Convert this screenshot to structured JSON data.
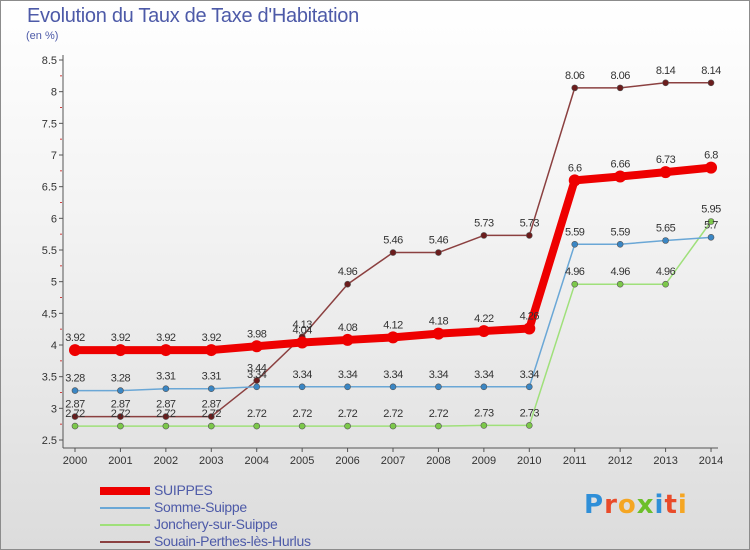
{
  "title": "Evolution du Taux de Taxe d'Habitation",
  "subtitle": "(en %)",
  "logo": {
    "letters": [
      {
        "ch": "P",
        "color": "#2f8fd8"
      },
      {
        "ch": "r",
        "color": "#e94b2a"
      },
      {
        "ch": "o",
        "color": "#f5a623"
      },
      {
        "ch": "x",
        "color": "#6cbf2a"
      },
      {
        "ch": "i",
        "color": "#2f8fd8"
      },
      {
        "ch": "t",
        "color": "#e94b2a"
      },
      {
        "ch": "i",
        "color": "#f5a623"
      }
    ]
  },
  "chart_data": {
    "type": "line",
    "title": "Evolution du Taux de Taxe d'Habitation",
    "ylabel": "(en %)",
    "xlabel": "",
    "ylim": [
      2.5,
      8.5
    ],
    "yticks": [
      "2.5",
      "3",
      "3.5",
      "4",
      "4.5",
      "5",
      "5.5",
      "6",
      "6.5",
      "7",
      "7.5",
      "8",
      "8.5"
    ],
    "x": [
      "2000",
      "2001",
      "2002",
      "2003",
      "2004",
      "2005",
      "2006",
      "2007",
      "2008",
      "2009",
      "2010",
      "2011",
      "2012",
      "2013",
      "2014"
    ],
    "grid": false,
    "legend_position": "bottom-left",
    "series": [
      {
        "name": "SUIPPES",
        "color": "#ee0000",
        "point_color": "#ee0000",
        "width": 8,
        "values": [
          3.92,
          3.92,
          3.92,
          3.92,
          3.98,
          4.04,
          4.08,
          4.12,
          4.18,
          4.22,
          4.26,
          6.6,
          6.66,
          6.73,
          6.8
        ],
        "labels": [
          "3.92",
          "3.92",
          "3.92",
          "3.92",
          "3.98",
          "4.04",
          "4.08",
          "4.12",
          "4.18",
          "4.22",
          "4.26",
          "6.6",
          "6.66",
          "6.73",
          "6.8"
        ]
      },
      {
        "name": "Somme-Suippe",
        "color": "#6aa7d6",
        "point_color": "#3a86c4",
        "width": 1.5,
        "values": [
          3.28,
          3.28,
          3.31,
          3.31,
          3.34,
          3.34,
          3.34,
          3.34,
          3.34,
          3.34,
          3.34,
          5.59,
          5.59,
          5.65,
          5.7
        ],
        "labels": [
          "3.28",
          "3.28",
          "3.31",
          "3.31",
          "3.34",
          "3.34",
          "3.34",
          "3.34",
          "3.34",
          "3.34",
          "3.34",
          "5.59",
          "5.59",
          "5.65",
          "5.7"
        ]
      },
      {
        "name": "Jonchery-sur-Suippe",
        "color": "#9fe07a",
        "point_color": "#7cc84a",
        "width": 1.5,
        "values": [
          2.72,
          2.72,
          2.72,
          2.72,
          2.72,
          2.72,
          2.72,
          2.72,
          2.72,
          2.73,
          2.73,
          4.96,
          4.96,
          4.96,
          5.95
        ],
        "labels": [
          "2.72",
          "2.72",
          "2.72",
          "2.72",
          "2.72",
          "2.72",
          "2.72",
          "2.72",
          "2.72",
          "2.73",
          "2.73",
          "4.96",
          "4.96",
          "4.96",
          "5.95"
        ]
      },
      {
        "name": "Souain-Perthes-lès-Hurlus",
        "color": "#8b4040",
        "point_color": "#6b1c1c",
        "width": 1.5,
        "values": [
          2.87,
          2.87,
          2.87,
          2.87,
          3.44,
          4.13,
          4.96,
          5.46,
          5.46,
          5.73,
          5.73,
          8.06,
          8.06,
          8.14,
          8.14
        ],
        "labels": [
          "2.87",
          "2.87",
          "2.87",
          "2.87",
          "3.44",
          "4.13",
          "4.96",
          "5.46",
          "5.46",
          "5.73",
          "5.73",
          "8.06",
          "8.06",
          "8.14",
          "8.14"
        ]
      }
    ]
  }
}
